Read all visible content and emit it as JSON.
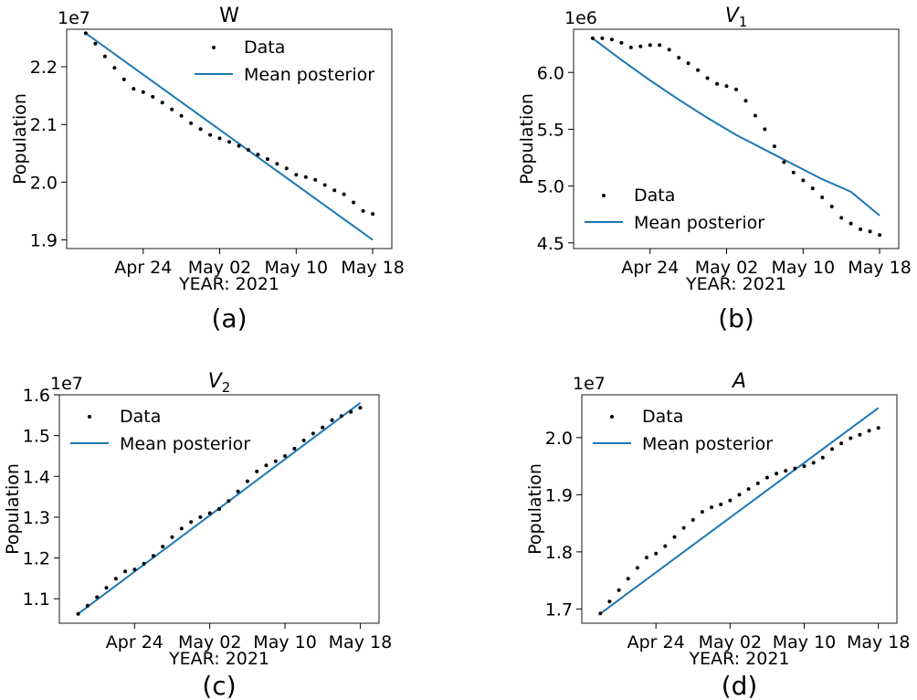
{
  "figure": {
    "panel_labels": [
      "(a)",
      "(b)",
      "(c)",
      "(d)"
    ]
  },
  "colors": {
    "posterior_line": "#1f77b4",
    "data_points": "#000000"
  },
  "chart_data": [
    {
      "type": "scatter",
      "title": "W",
      "title_italic": false,
      "panel_label": "(a)",
      "xlabel": "YEAR: 2021",
      "ylabel": "Population",
      "offset_text": "1e7",
      "scale": 10000000,
      "xtick_labels": [
        "Apr 24",
        "May 02",
        "May 10",
        "May 18"
      ],
      "xticks": [
        "2021-04-24",
        "2021-05-02",
        "2021-05-10",
        "2021-05-18"
      ],
      "xlim": [
        "2021-04-16",
        "2021-05-20"
      ],
      "ylim": [
        1.885,
        2.265
      ],
      "yticks": [
        1.9,
        2.0,
        2.1,
        2.2
      ],
      "ytick_labels": [
        "1.9",
        "2.0",
        "2.1",
        "2.2"
      ],
      "legend": {
        "placement": "upper-right",
        "entries": [
          "Data",
          "Mean posterior"
        ]
      },
      "series": [
        {
          "name": "Data",
          "kind": "points",
          "x": [
            "2021-04-18",
            "2021-04-19",
            "2021-04-20",
            "2021-04-21",
            "2021-04-22",
            "2021-04-23",
            "2021-04-24",
            "2021-04-25",
            "2021-04-26",
            "2021-04-27",
            "2021-04-28",
            "2021-04-29",
            "2021-04-30",
            "2021-05-01",
            "2021-05-02",
            "2021-05-03",
            "2021-05-04",
            "2021-05-05",
            "2021-05-06",
            "2021-05-07",
            "2021-05-08",
            "2021-05-09",
            "2021-05-10",
            "2021-05-11",
            "2021-05-12",
            "2021-05-13",
            "2021-05-14",
            "2021-05-15",
            "2021-05-16",
            "2021-05-17",
            "2021-05-18"
          ],
          "y": [
            2.258,
            2.24,
            2.218,
            2.198,
            2.178,
            2.162,
            2.156,
            2.148,
            2.138,
            2.126,
            2.115,
            2.102,
            2.092,
            2.082,
            2.076,
            2.07,
            2.063,
            2.056,
            2.048,
            2.04,
            2.032,
            2.024,
            2.013,
            2.009,
            2.004,
            1.995,
            1.986,
            1.979,
            1.965,
            1.95,
            1.945
          ]
        },
        {
          "name": "Mean posterior",
          "kind": "line",
          "x": [
            "2021-04-18",
            "2021-05-18"
          ],
          "y": [
            2.258,
            1.9
          ]
        }
      ]
    },
    {
      "type": "scatter",
      "title": "V_1",
      "title_italic": true,
      "panel_label": "(b)",
      "xlabel": "YEAR: 2021",
      "ylabel": "Population",
      "offset_text": "1e6",
      "scale": 1000000,
      "xtick_labels": [
        "Apr 24",
        "May 02",
        "May 10",
        "May 18"
      ],
      "xticks": [
        "2021-04-24",
        "2021-05-02",
        "2021-05-10",
        "2021-05-18"
      ],
      "xlim": [
        "2021-04-16",
        "2021-05-20"
      ],
      "ylim": [
        4.45,
        6.38
      ],
      "yticks": [
        4.5,
        5.0,
        5.5,
        6.0
      ],
      "ytick_labels": [
        "4.5",
        "5.0",
        "5.5",
        "6.0"
      ],
      "legend": {
        "placement": "lower-left",
        "entries": [
          "Data",
          "Mean posterior"
        ]
      },
      "series": [
        {
          "name": "Data",
          "kind": "points",
          "x": [
            "2021-04-18",
            "2021-04-19",
            "2021-04-20",
            "2021-04-21",
            "2021-04-22",
            "2021-04-23",
            "2021-04-24",
            "2021-04-25",
            "2021-04-26",
            "2021-04-27",
            "2021-04-28",
            "2021-04-29",
            "2021-04-30",
            "2021-05-01",
            "2021-05-02",
            "2021-05-03",
            "2021-05-04",
            "2021-05-05",
            "2021-05-06",
            "2021-05-07",
            "2021-05-08",
            "2021-05-09",
            "2021-05-10",
            "2021-05-11",
            "2021-05-12",
            "2021-05-13",
            "2021-05-14",
            "2021-05-15",
            "2021-05-16",
            "2021-05-17",
            "2021-05-18"
          ],
          "y": [
            6.3,
            6.3,
            6.29,
            6.26,
            6.22,
            6.23,
            6.24,
            6.24,
            6.2,
            6.13,
            6.08,
            6.02,
            5.95,
            5.9,
            5.88,
            5.85,
            5.75,
            5.62,
            5.5,
            5.35,
            5.21,
            5.12,
            5.05,
            4.98,
            4.9,
            4.82,
            4.72,
            4.67,
            4.62,
            4.6,
            4.57
          ]
        },
        {
          "name": "Mean posterior",
          "kind": "line",
          "x": [
            "2021-04-18",
            "2021-04-21",
            "2021-04-24",
            "2021-04-27",
            "2021-04-30",
            "2021-05-03",
            "2021-05-06",
            "2021-05-09",
            "2021-05-12",
            "2021-05-15",
            "2021-05-18"
          ],
          "y": [
            6.3,
            6.11,
            5.93,
            5.76,
            5.6,
            5.45,
            5.32,
            5.19,
            5.06,
            4.95,
            4.74
          ]
        }
      ]
    },
    {
      "type": "scatter",
      "title": "V_2",
      "title_italic": true,
      "panel_label": "(c)",
      "xlabel": "YEAR: 2021",
      "ylabel": "Population",
      "offset_text": "1e7",
      "scale": 10000000,
      "xtick_labels": [
        "Apr 24",
        "May 02",
        "May 10",
        "May 18"
      ],
      "xticks": [
        "2021-04-24",
        "2021-05-02",
        "2021-05-10",
        "2021-05-18"
      ],
      "xlim": [
        "2021-04-16",
        "2021-05-20"
      ],
      "ylim": [
        1.04,
        1.6
      ],
      "yticks": [
        1.1,
        1.2,
        1.3,
        1.4,
        1.5,
        1.6
      ],
      "ytick_labels": [
        "1.1",
        "1.2",
        "1.3",
        "1.4",
        "1.5",
        "1.6"
      ],
      "legend": {
        "placement": "upper-left",
        "entries": [
          "Data",
          "Mean posterior"
        ]
      },
      "series": [
        {
          "name": "Data",
          "kind": "points",
          "x": [
            "2021-04-18",
            "2021-04-19",
            "2021-04-20",
            "2021-04-21",
            "2021-04-22",
            "2021-04-23",
            "2021-04-24",
            "2021-04-25",
            "2021-04-26",
            "2021-04-27",
            "2021-04-28",
            "2021-04-29",
            "2021-04-30",
            "2021-05-01",
            "2021-05-02",
            "2021-05-03",
            "2021-05-04",
            "2021-05-05",
            "2021-05-06",
            "2021-05-07",
            "2021-05-08",
            "2021-05-09",
            "2021-05-10",
            "2021-05-11",
            "2021-05-12",
            "2021-05-13",
            "2021-05-14",
            "2021-05-15",
            "2021-05-16",
            "2021-05-17",
            "2021-05-18"
          ],
          "y": [
            1.063,
            1.083,
            1.104,
            1.127,
            1.149,
            1.167,
            1.172,
            1.186,
            1.205,
            1.228,
            1.251,
            1.272,
            1.288,
            1.3,
            1.31,
            1.32,
            1.34,
            1.363,
            1.388,
            1.412,
            1.427,
            1.437,
            1.45,
            1.468,
            1.488,
            1.505,
            1.52,
            1.538,
            1.548,
            1.558,
            1.568
          ]
        },
        {
          "name": "Mean posterior",
          "kind": "line",
          "x": [
            "2021-04-18",
            "2021-05-18"
          ],
          "y": [
            1.063,
            1.58
          ]
        }
      ]
    },
    {
      "type": "scatter",
      "title": "A",
      "title_italic": true,
      "panel_label": "(d)",
      "xlabel": "YEAR: 2021",
      "ylabel": "Population",
      "offset_text": "1e7",
      "scale": 10000000,
      "xtick_labels": [
        "Apr 24",
        "May 02",
        "May 10",
        "May 18"
      ],
      "xticks": [
        "2021-04-24",
        "2021-05-02",
        "2021-05-10",
        "2021-05-18"
      ],
      "xlim": [
        "2021-04-16",
        "2021-05-20"
      ],
      "ylim": [
        1.675,
        2.075
      ],
      "yticks": [
        1.7,
        1.8,
        1.9,
        2.0
      ],
      "ytick_labels": [
        "1.7",
        "1.8",
        "1.9",
        "2.0"
      ],
      "legend": {
        "placement": "upper-left",
        "entries": [
          "Data",
          "Mean posterior"
        ]
      },
      "series": [
        {
          "name": "Data",
          "kind": "points",
          "x": [
            "2021-04-18",
            "2021-04-19",
            "2021-04-20",
            "2021-04-21",
            "2021-04-22",
            "2021-04-23",
            "2021-04-24",
            "2021-04-25",
            "2021-04-26",
            "2021-04-27",
            "2021-04-28",
            "2021-04-29",
            "2021-04-30",
            "2021-05-01",
            "2021-05-02",
            "2021-05-03",
            "2021-05-04",
            "2021-05-05",
            "2021-05-06",
            "2021-05-07",
            "2021-05-08",
            "2021-05-09",
            "2021-05-10",
            "2021-05-11",
            "2021-05-12",
            "2021-05-13",
            "2021-05-14",
            "2021-05-15",
            "2021-05-16",
            "2021-05-17",
            "2021-05-18"
          ],
          "y": [
            1.692,
            1.713,
            1.733,
            1.753,
            1.772,
            1.79,
            1.797,
            1.81,
            1.826,
            1.842,
            1.856,
            1.87,
            1.878,
            1.883,
            1.89,
            1.9,
            1.91,
            1.92,
            1.93,
            1.937,
            1.942,
            1.946,
            1.95,
            1.956,
            1.965,
            1.98,
            1.99,
            1.999,
            2.005,
            2.012,
            2.017
          ]
        },
        {
          "name": "Mean posterior",
          "kind": "line",
          "x": [
            "2021-04-18",
            "2021-05-18"
          ],
          "y": [
            1.692,
            2.052
          ]
        }
      ]
    }
  ]
}
